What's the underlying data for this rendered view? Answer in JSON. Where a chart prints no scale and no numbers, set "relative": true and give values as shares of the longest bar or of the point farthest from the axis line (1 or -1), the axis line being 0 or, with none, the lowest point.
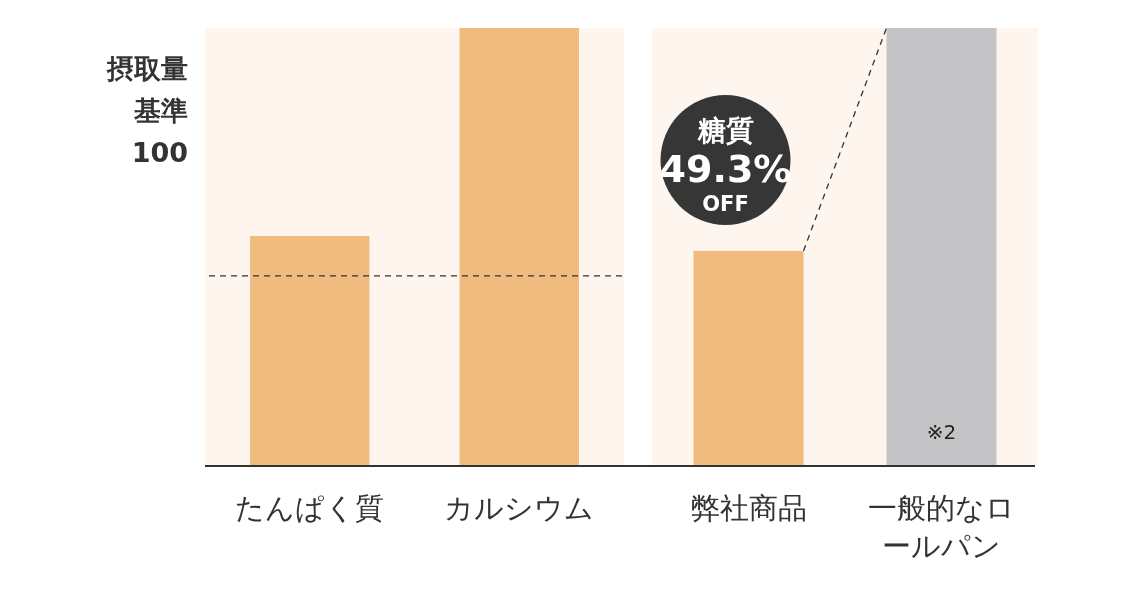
{
  "chart_data": [
    {
      "type": "bar",
      "relative": true,
      "ylabel": "摂取量基準100",
      "categories": [
        "たんぱく質",
        "カルシウム"
      ],
      "values": [
        0.525,
        1
      ],
      "color": "#f0bb7e",
      "ref_lines": [
        {
          "axis": "y",
          "value": 0.434,
          "line_style": "dashed",
          "color": "#333333"
        }
      ]
    },
    {
      "type": "bar",
      "relative": true,
      "categories": [
        "弊社商品",
        "一般的なロールパン"
      ],
      "values": [
        0.491,
        1
      ],
      "colors": [
        "#f0bb7e",
        "#c4c4c6"
      ],
      "annotations": [
        "糖質 49.3% OFF",
        "※2"
      ]
    }
  ]
}
